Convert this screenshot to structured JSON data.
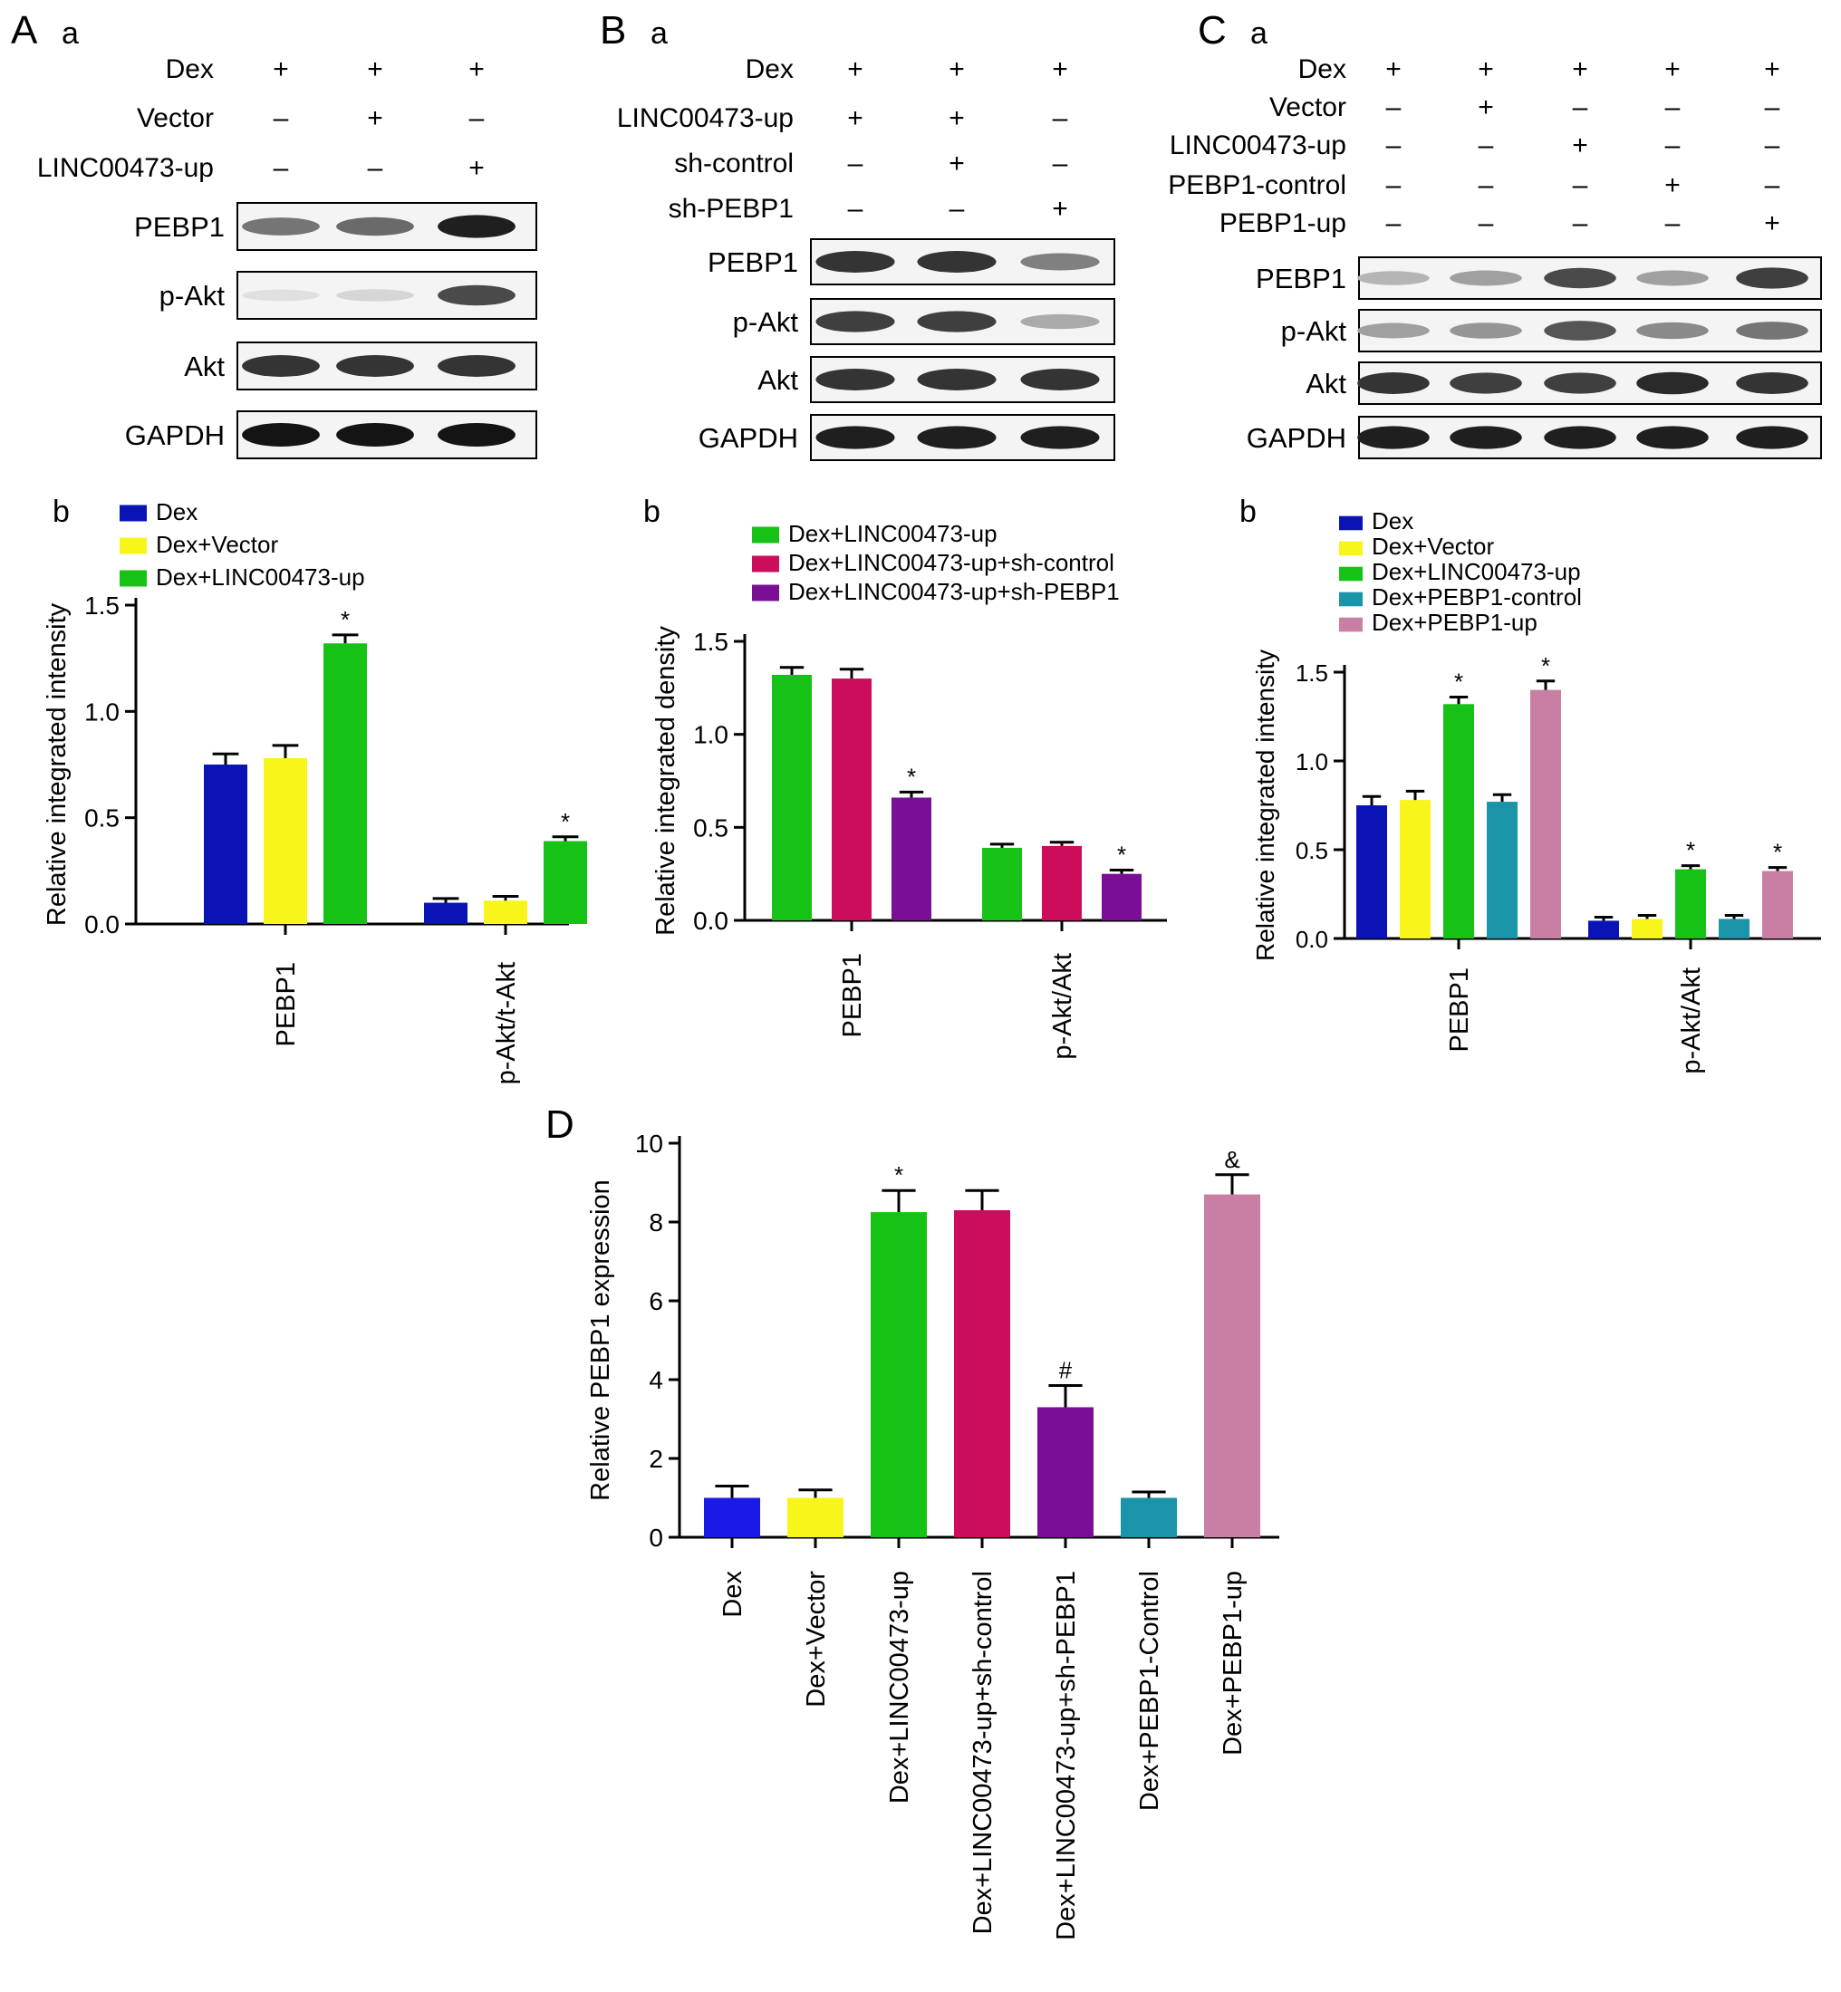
{
  "blot_panels": [
    {
      "label": "A",
      "sublabel": "a",
      "conditions": [
        {
          "name": "Dex",
          "signs": [
            "+",
            "+",
            "+"
          ]
        },
        {
          "name": "Vector",
          "signs": [
            "–",
            "+",
            "–"
          ]
        },
        {
          "name": "LINC00473-up",
          "signs": [
            "–",
            "–",
            "+"
          ]
        }
      ],
      "blots": [
        {
          "name": "PEBP1",
          "intensities": [
            0.55,
            0.6,
            0.95
          ]
        },
        {
          "name": "p-Akt",
          "intensities": [
            0.05,
            0.1,
            0.75
          ]
        },
        {
          "name": "Akt",
          "intensities": [
            0.85,
            0.85,
            0.85
          ]
        },
        {
          "name": "GAPDH",
          "intensities": [
            1.0,
            1.0,
            1.0
          ]
        }
      ]
    },
    {
      "label": "B",
      "sublabel": "a",
      "conditions": [
        {
          "name": "Dex",
          "signs": [
            "+",
            "+",
            "+"
          ]
        },
        {
          "name": "LINC00473-up",
          "signs": [
            "+",
            "+",
            "–"
          ]
        },
        {
          "name": "sh-control",
          "signs": [
            "–",
            "+",
            "–"
          ]
        },
        {
          "name": "sh-PEBP1",
          "signs": [
            "–",
            "–",
            "+"
          ]
        }
      ],
      "blots": [
        {
          "name": "PEBP1",
          "intensities": [
            0.85,
            0.85,
            0.5
          ]
        },
        {
          "name": "p-Akt",
          "intensities": [
            0.8,
            0.8,
            0.3
          ]
        },
        {
          "name": "Akt",
          "intensities": [
            0.85,
            0.85,
            0.85
          ]
        },
        {
          "name": "GAPDH",
          "intensities": [
            0.95,
            0.95,
            0.95
          ]
        }
      ]
    },
    {
      "label": "C",
      "sublabel": "a",
      "conditions": [
        {
          "name": "Dex",
          "signs": [
            "+",
            "+",
            "+",
            "+",
            "+"
          ]
        },
        {
          "name": "Vector",
          "signs": [
            "–",
            "+",
            "–",
            "–",
            "–"
          ]
        },
        {
          "name": "LINC00473-up",
          "signs": [
            "–",
            "–",
            "+",
            "–",
            "–"
          ]
        },
        {
          "name": "PEBP1-control",
          "signs": [
            "–",
            "–",
            "–",
            "+",
            "–"
          ]
        },
        {
          "name": "PEBP1-up",
          "signs": [
            "–",
            "–",
            "–",
            "–",
            "+"
          ]
        }
      ],
      "blots": [
        {
          "name": "PEBP1",
          "intensities": [
            0.25,
            0.35,
            0.75,
            0.35,
            0.8
          ]
        },
        {
          "name": "p-Akt",
          "intensities": [
            0.35,
            0.4,
            0.7,
            0.45,
            0.55
          ]
        },
        {
          "name": "Akt",
          "intensities": [
            0.85,
            0.8,
            0.8,
            0.9,
            0.85
          ]
        },
        {
          "name": "GAPDH",
          "intensities": [
            0.95,
            0.95,
            0.95,
            0.95,
            0.95
          ]
        }
      ]
    }
  ],
  "chart_data": [
    {
      "panel": "A",
      "sublabel": "b",
      "type": "bar",
      "ylabel": "Relative integrated intensity",
      "ylim": [
        0,
        1.5
      ],
      "yticks": [
        "0.0",
        "0.5",
        "1.0",
        "1.5"
      ],
      "categories": [
        "PEBP1",
        "p-Akt/t-Akt"
      ],
      "series": [
        {
          "name": "Dex",
          "color": "#0a14b4",
          "values": [
            0.75,
            0.1
          ],
          "errors": [
            0.05,
            0.02
          ],
          "marks": [
            "",
            ""
          ]
        },
        {
          "name": "Dex+Vector",
          "color": "#f7f51a",
          "values": [
            0.78,
            0.11
          ],
          "errors": [
            0.06,
            0.02
          ],
          "marks": [
            "",
            ""
          ]
        },
        {
          "name": "Dex+LINC00473-up",
          "color": "#16c216",
          "values": [
            1.32,
            0.39
          ],
          "errors": [
            0.04,
            0.02
          ],
          "marks": [
            "*",
            "*"
          ]
        }
      ]
    },
    {
      "panel": "B",
      "sublabel": "b",
      "type": "bar",
      "ylabel": "Relative integrated density",
      "ylim": [
        0,
        1.5
      ],
      "yticks": [
        "0.0",
        "0.5",
        "1.0",
        "1.5"
      ],
      "categories": [
        "PEBP1",
        "p-Akt/Akt"
      ],
      "series": [
        {
          "name": "Dex+LINC00473-up",
          "color": "#16c216",
          "values": [
            1.32,
            0.39
          ],
          "errors": [
            0.04,
            0.02
          ],
          "marks": [
            "",
            ""
          ]
        },
        {
          "name": "Dex+LINC00473-up+sh-control",
          "color": "#cc0d5c",
          "values": [
            1.3,
            0.4
          ],
          "errors": [
            0.05,
            0.02
          ],
          "marks": [
            "",
            ""
          ]
        },
        {
          "name": "Dex+LINC00473-up+sh-PEBP1",
          "color": "#7a0f96",
          "values": [
            0.66,
            0.25
          ],
          "errors": [
            0.03,
            0.02
          ],
          "marks": [
            "*",
            "*"
          ]
        }
      ]
    },
    {
      "panel": "C",
      "sublabel": "b",
      "type": "bar",
      "ylabel": "Relative integrated intensity",
      "ylim": [
        0,
        1.5
      ],
      "yticks": [
        "0.0",
        "0.5",
        "1.0",
        "1.5"
      ],
      "categories": [
        "PEBP1",
        "p-Akt/Akt"
      ],
      "series": [
        {
          "name": "Dex",
          "color": "#0a14b4",
          "values": [
            0.75,
            0.1
          ],
          "errors": [
            0.05,
            0.02
          ],
          "marks": [
            "",
            ""
          ]
        },
        {
          "name": "Dex+Vector",
          "color": "#f7f51a",
          "values": [
            0.78,
            0.11
          ],
          "errors": [
            0.05,
            0.02
          ],
          "marks": [
            "",
            ""
          ]
        },
        {
          "name": "Dex+LINC00473-up",
          "color": "#16c216",
          "values": [
            1.32,
            0.39
          ],
          "errors": [
            0.04,
            0.02
          ],
          "marks": [
            "*",
            "*"
          ]
        },
        {
          "name": "Dex+PEBP1-control",
          "color": "#1994a8",
          "values": [
            0.77,
            0.11
          ],
          "errors": [
            0.04,
            0.02
          ],
          "marks": [
            "",
            ""
          ]
        },
        {
          "name": "Dex+PEBP1-up",
          "color": "#c87fa3",
          "values": [
            1.4,
            0.38
          ],
          "errors": [
            0.05,
            0.02
          ],
          "marks": [
            "*",
            "*"
          ]
        }
      ]
    },
    {
      "panel": "D",
      "type": "bar",
      "ylabel": "Relative PEBP1 expression",
      "ylim": [
        0,
        10
      ],
      "yticks": [
        "0",
        "2",
        "4",
        "6",
        "8",
        "10"
      ],
      "categories": [
        "Dex",
        "Dex+Vector",
        "Dex+LINC00473-up",
        "Dex+LINC00473-up+sh-control",
        "Dex+LINC00473-up+sh-PEBP1",
        "Dex+PEBP1-Control",
        "Dex+PEBP1-up"
      ],
      "values": [
        1.0,
        1.0,
        8.25,
        8.3,
        3.3,
        1.0,
        8.7
      ],
      "errors": [
        0.3,
        0.2,
        0.55,
        0.5,
        0.55,
        0.15,
        0.5
      ],
      "colors": [
        "#1a1ae6",
        "#f7f51a",
        "#16c216",
        "#cc0d5c",
        "#7a0f96",
        "#1994a8",
        "#c87fa3"
      ],
      "marks": [
        "",
        "",
        "*",
        "",
        "#",
        "",
        "&"
      ]
    }
  ]
}
